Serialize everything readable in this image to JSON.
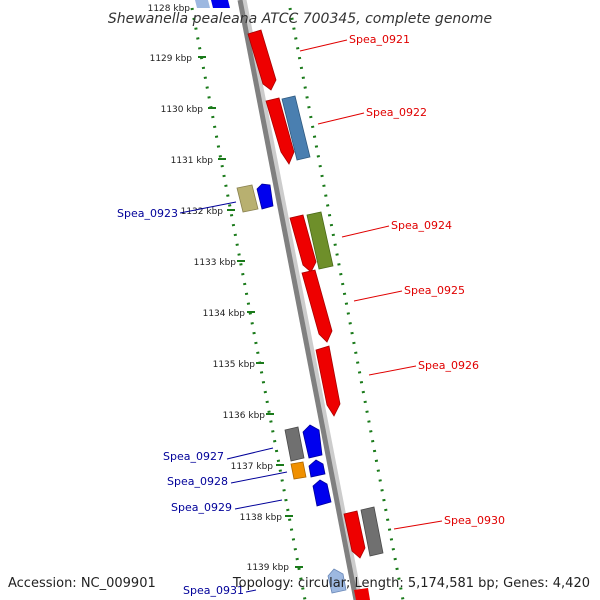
{
  "title": "Shewanella pealeana ATCC 700345, complete genome",
  "footer": {
    "accession": "Accession: NC_009901",
    "topology": "Topology: circular; Length: 5,174,581 bp; Genes: 4,420"
  },
  "kbp_ticks": [
    "1128 kbp",
    "1129 kbp",
    "1130 kbp",
    "1131 kbp",
    "1132 kbp",
    "1133 kbp",
    "1134 kbp",
    "1135 kbp",
    "1136 kbp",
    "1137 kbp",
    "1138 kbp",
    "1139 kbp"
  ],
  "genes_right": [
    {
      "name": "Spea_0921",
      "color": "#e00000"
    },
    {
      "name": "Spea_0922",
      "color": "#e00000"
    },
    {
      "name": "Spea_0924",
      "color": "#e00000"
    },
    {
      "name": "Spea_0925",
      "color": "#e00000"
    },
    {
      "name": "Spea_0926",
      "color": "#e00000"
    },
    {
      "name": "Spea_0930",
      "color": "#e00000"
    }
  ],
  "genes_left": [
    {
      "name": "Spea_0923",
      "color": "#000099"
    },
    {
      "name": "Spea_0927",
      "color": "#000099"
    },
    {
      "name": "Spea_0928",
      "color": "#000099"
    },
    {
      "name": "Spea_0929",
      "color": "#000099"
    },
    {
      "name": "Spea_0931",
      "color": "#000099"
    }
  ],
  "colors": {
    "backbone": "#808080",
    "dotted_track": "#1a7a1a",
    "gene_red": "#ee0000",
    "gene_blue": "#0000ee",
    "gene_steelblue": "#4a7fb0",
    "gene_olive": "#6e8f2a",
    "gene_khaki": "#b8b070",
    "gene_gray": "#707070",
    "gene_orange": "#f09000",
    "gene_lightblue": "#9db8e0"
  }
}
